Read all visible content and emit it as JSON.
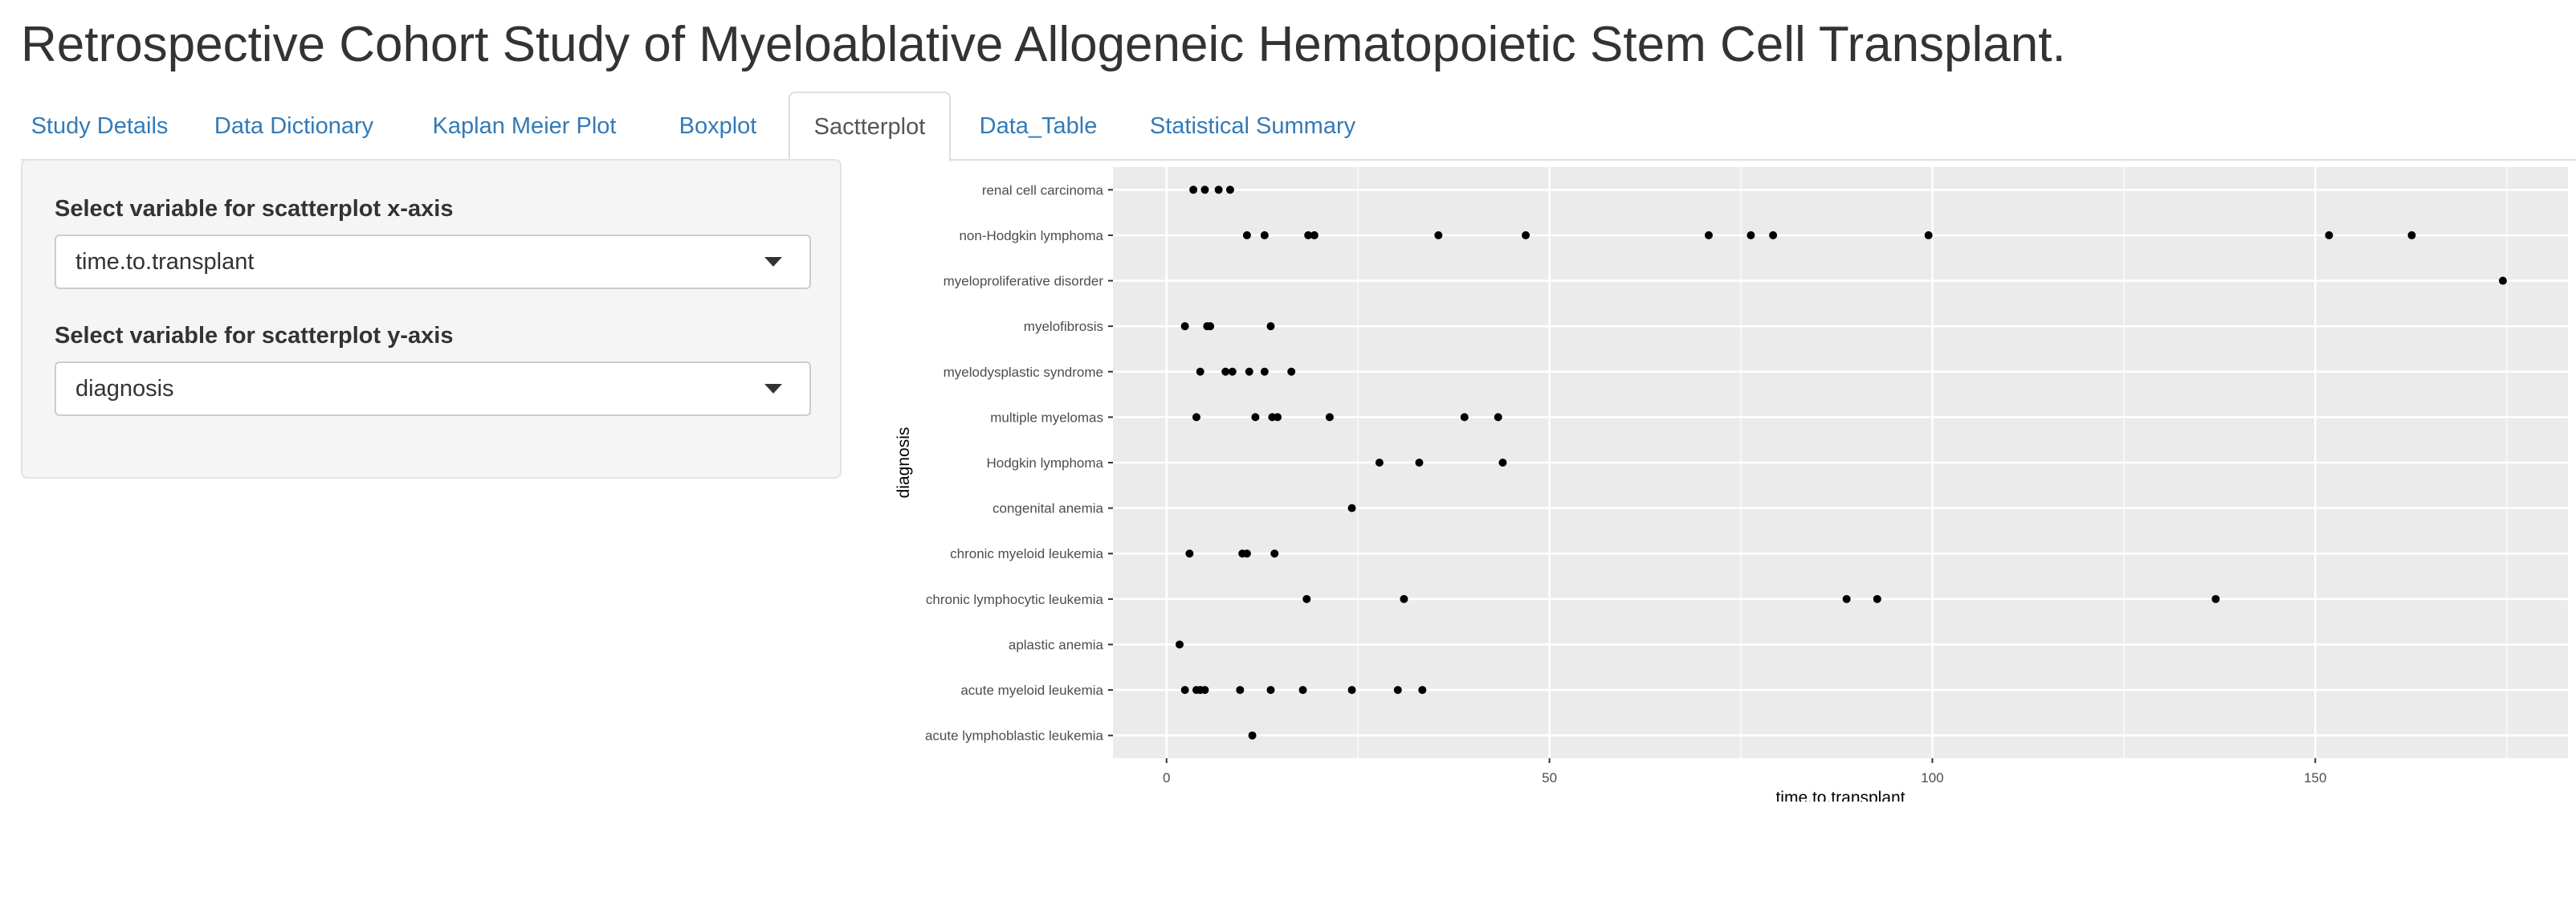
{
  "page": {
    "title": "Retrospective Cohort Study of Myeloablative Allogeneic Hematopoietic Stem Cell Transplant."
  },
  "tabs": [
    {
      "label": "Study Details",
      "active": false
    },
    {
      "label": "Data Dictionary",
      "active": false
    },
    {
      "label": "Kaplan Meier Plot",
      "active": false
    },
    {
      "label": "Boxplot",
      "active": false
    },
    {
      "label": "Sactterplot",
      "active": true
    },
    {
      "label": "Data_Table",
      "active": false
    },
    {
      "label": "Statistical Summary",
      "active": false
    }
  ],
  "sidebar": {
    "x_control": {
      "label": "Select variable for scatterplot x-axis",
      "value": "time.to.transplant",
      "icon": "chevron-down-icon"
    },
    "y_control": {
      "label": "Select variable for scatterplot y-axis",
      "value": "diagnosis",
      "icon": "chevron-down-icon"
    }
  },
  "colors": {
    "link": "#337ab7",
    "panel_bg": "#ebebeb",
    "gridline": "#ffffff",
    "point": "#000000",
    "sidebar_bg": "#f5f5f5"
  },
  "chart_data": {
    "type": "scatter",
    "xlabel": "time.to.transplant",
    "ylabel": "diagnosis",
    "xlim": [
      -7,
      183
    ],
    "x_ticks": [
      0,
      50,
      100,
      150
    ],
    "grid": true,
    "categories": [
      "acute lymphoblastic leukemia",
      "acute myeloid leukemia",
      "aplastic anemia",
      "chronic lymphocytic leukemia",
      "chronic myeloid leukemia",
      "congenital anemia",
      "Hodgkin lymphoma",
      "multiple myelomas",
      "myelodysplastic syndrome",
      "myelofibrosis",
      "myeloproliferative disorder",
      "non-Hodgkin lymphoma",
      "renal cell carcinoma"
    ],
    "points": [
      {
        "x": 11.2,
        "y": "acute lymphoblastic leukemia"
      },
      {
        "x": 2.4,
        "y": "acute myeloid leukemia"
      },
      {
        "x": 3.9,
        "y": "acute myeloid leukemia"
      },
      {
        "x": 4.4,
        "y": "acute myeloid leukemia"
      },
      {
        "x": 5.0,
        "y": "acute myeloid leukemia"
      },
      {
        "x": 9.6,
        "y": "acute myeloid leukemia"
      },
      {
        "x": 13.6,
        "y": "acute myeloid leukemia"
      },
      {
        "x": 17.8,
        "y": "acute myeloid leukemia"
      },
      {
        "x": 24.2,
        "y": "acute myeloid leukemia"
      },
      {
        "x": 30.2,
        "y": "acute myeloid leukemia"
      },
      {
        "x": 33.4,
        "y": "acute myeloid leukemia"
      },
      {
        "x": 1.7,
        "y": "aplastic anemia"
      },
      {
        "x": 18.3,
        "y": "chronic lymphocytic leukemia"
      },
      {
        "x": 31.0,
        "y": "chronic lymphocytic leukemia"
      },
      {
        "x": 88.8,
        "y": "chronic lymphocytic leukemia"
      },
      {
        "x": 92.8,
        "y": "chronic lymphocytic leukemia"
      },
      {
        "x": 137.0,
        "y": "chronic lymphocytic leukemia"
      },
      {
        "x": 3.0,
        "y": "chronic myeloid leukemia"
      },
      {
        "x": 9.9,
        "y": "chronic myeloid leukemia"
      },
      {
        "x": 10.5,
        "y": "chronic myeloid leukemia"
      },
      {
        "x": 14.1,
        "y": "chronic myeloid leukemia"
      },
      {
        "x": 24.2,
        "y": "congenital anemia"
      },
      {
        "x": 27.8,
        "y": "Hodgkin lymphoma"
      },
      {
        "x": 33.0,
        "y": "Hodgkin lymphoma"
      },
      {
        "x": 43.9,
        "y": "Hodgkin lymphoma"
      },
      {
        "x": 3.9,
        "y": "multiple myelomas"
      },
      {
        "x": 11.6,
        "y": "multiple myelomas"
      },
      {
        "x": 13.8,
        "y": "multiple myelomas"
      },
      {
        "x": 14.5,
        "y": "multiple myelomas"
      },
      {
        "x": 21.3,
        "y": "multiple myelomas"
      },
      {
        "x": 38.9,
        "y": "multiple myelomas"
      },
      {
        "x": 43.3,
        "y": "multiple myelomas"
      },
      {
        "x": 4.4,
        "y": "myelodysplastic syndrome"
      },
      {
        "x": 7.7,
        "y": "myelodysplastic syndrome"
      },
      {
        "x": 8.6,
        "y": "myelodysplastic syndrome"
      },
      {
        "x": 10.8,
        "y": "myelodysplastic syndrome"
      },
      {
        "x": 12.8,
        "y": "myelodysplastic syndrome"
      },
      {
        "x": 16.3,
        "y": "myelodysplastic syndrome"
      },
      {
        "x": 2.4,
        "y": "myelofibrosis"
      },
      {
        "x": 5.3,
        "y": "myelofibrosis"
      },
      {
        "x": 5.7,
        "y": "myelofibrosis"
      },
      {
        "x": 13.6,
        "y": "myelofibrosis"
      },
      {
        "x": 174.5,
        "y": "myeloproliferative disorder"
      },
      {
        "x": 10.5,
        "y": "non-Hodgkin lymphoma"
      },
      {
        "x": 12.8,
        "y": "non-Hodgkin lymphoma"
      },
      {
        "x": 18.5,
        "y": "non-Hodgkin lymphoma"
      },
      {
        "x": 19.3,
        "y": "non-Hodgkin lymphoma"
      },
      {
        "x": 35.5,
        "y": "non-Hodgkin lymphoma"
      },
      {
        "x": 46.9,
        "y": "non-Hodgkin lymphoma"
      },
      {
        "x": 70.8,
        "y": "non-Hodgkin lymphoma"
      },
      {
        "x": 76.3,
        "y": "non-Hodgkin lymphoma"
      },
      {
        "x": 79.2,
        "y": "non-Hodgkin lymphoma"
      },
      {
        "x": 99.5,
        "y": "non-Hodgkin lymphoma"
      },
      {
        "x": 151.8,
        "y": "non-Hodgkin lymphoma"
      },
      {
        "x": 162.6,
        "y": "non-Hodgkin lymphoma"
      },
      {
        "x": 3.5,
        "y": "renal cell carcinoma"
      },
      {
        "x": 5.0,
        "y": "renal cell carcinoma"
      },
      {
        "x": 6.8,
        "y": "renal cell carcinoma"
      },
      {
        "x": 8.3,
        "y": "renal cell carcinoma"
      }
    ]
  }
}
